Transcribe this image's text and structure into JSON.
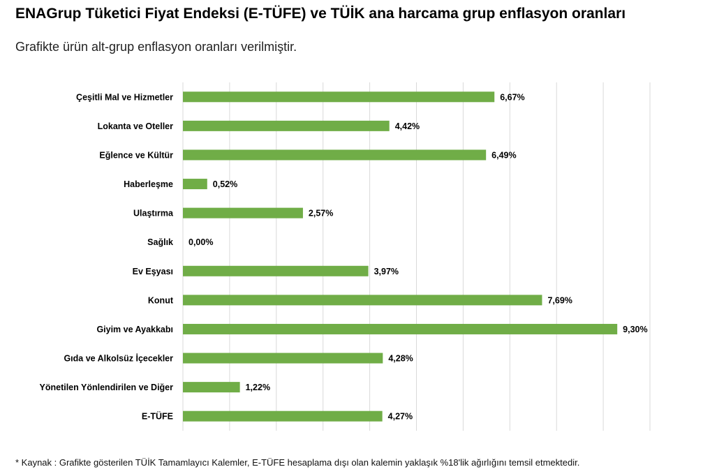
{
  "header": {
    "title": "ENAGrup Tüketici Fiyat Endeksi (E-TÜFE) ve TÜİK ana harcama grup enflasyon oranları",
    "subtitle": "Grafikte ürün alt-grup enflasyon oranları verilmiştir."
  },
  "footer": {
    "note": "*  Kaynak : Grafikte gösterilen TÜİK Tamamlayıcı Kalemler, E-TÜFE hesaplama dışı olan kalemin yaklaşık %18'lik ağırlığını temsil etmektedir."
  },
  "chart_data": {
    "type": "bar",
    "orientation": "horizontal",
    "categories": [
      "Çeşitli Mal ve Hizmetler",
      "Lokanta ve Oteller",
      "Eğlence ve Kültür",
      "Haberleşme",
      "Ulaştırma",
      "Sağlık",
      "Ev Eşyası",
      "Konut",
      "Giyim ve Ayakkabı",
      "Gıda ve Alkolsüz İçecekler",
      "Yönetilen Yönlendirilen ve Diğer",
      "E-TÜFE"
    ],
    "values": [
      6.67,
      4.42,
      6.49,
      0.52,
      2.57,
      0.0,
      3.97,
      7.69,
      9.3,
      4.28,
      1.22,
      4.27
    ],
    "value_labels": [
      "6,67%",
      "4,42%",
      "6,49%",
      "0,52%",
      "2,57%",
      "0,00%",
      "3,97%",
      "7,69%",
      "9,30%",
      "4,28%",
      "1,22%",
      "4,27%"
    ],
    "xlim": [
      0,
      10
    ],
    "grid": true,
    "bar_color": "#70ad47",
    "grid_color": "#d9d9d9"
  }
}
